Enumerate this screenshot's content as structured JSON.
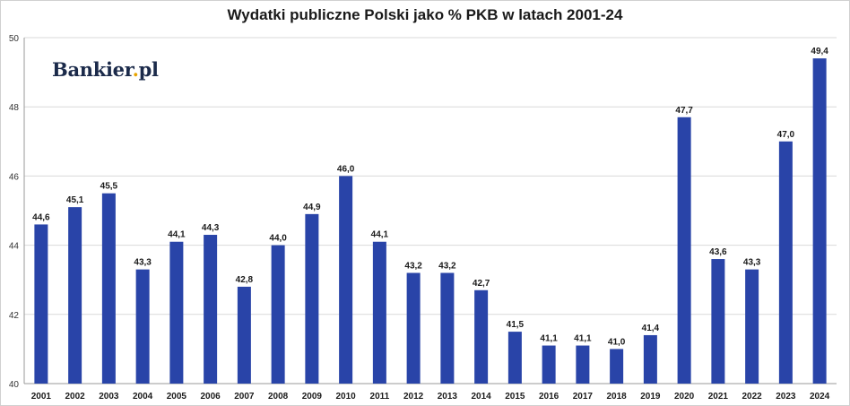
{
  "brand": {
    "name": "Bankier",
    "dot": ".",
    "suffix": "pl"
  },
  "chart_data": {
    "type": "bar",
    "title": "Wydatki publiczne Polski jako % PKB w latach 2001-24",
    "xlabel": "",
    "ylabel": "",
    "categories": [
      "2001",
      "2002",
      "2003",
      "2004",
      "2005",
      "2006",
      "2007",
      "2008",
      "2009",
      "2010",
      "2011",
      "2012",
      "2013",
      "2014",
      "2015",
      "2016",
      "2017",
      "2018",
      "2019",
      "2020",
      "2021",
      "2022",
      "2023",
      "2024"
    ],
    "values": [
      44.6,
      45.1,
      45.5,
      43.3,
      44.1,
      44.3,
      42.8,
      44.0,
      44.9,
      46.0,
      44.1,
      43.2,
      43.2,
      42.7,
      41.5,
      41.1,
      41.1,
      41.0,
      41.4,
      47.7,
      43.6,
      43.3,
      47.0,
      49.4
    ],
    "data_labels": [
      "44,6",
      "45,1",
      "45,5",
      "43,3",
      "44,1",
      "44,3",
      "42,8",
      "44,0",
      "44,9",
      "46,0",
      "44,1",
      "43,2",
      "43,2",
      "42,7",
      "41,5",
      "41,1",
      "41,1",
      "41,0",
      "41,4",
      "47,7",
      "43,6",
      "43,3",
      "47,0",
      "49,4"
    ],
    "ylim": [
      40,
      50
    ],
    "yticks": [
      40,
      42,
      44,
      46,
      48,
      50
    ],
    "grid": true,
    "legend": "none",
    "bar_color": "#2944a8"
  }
}
